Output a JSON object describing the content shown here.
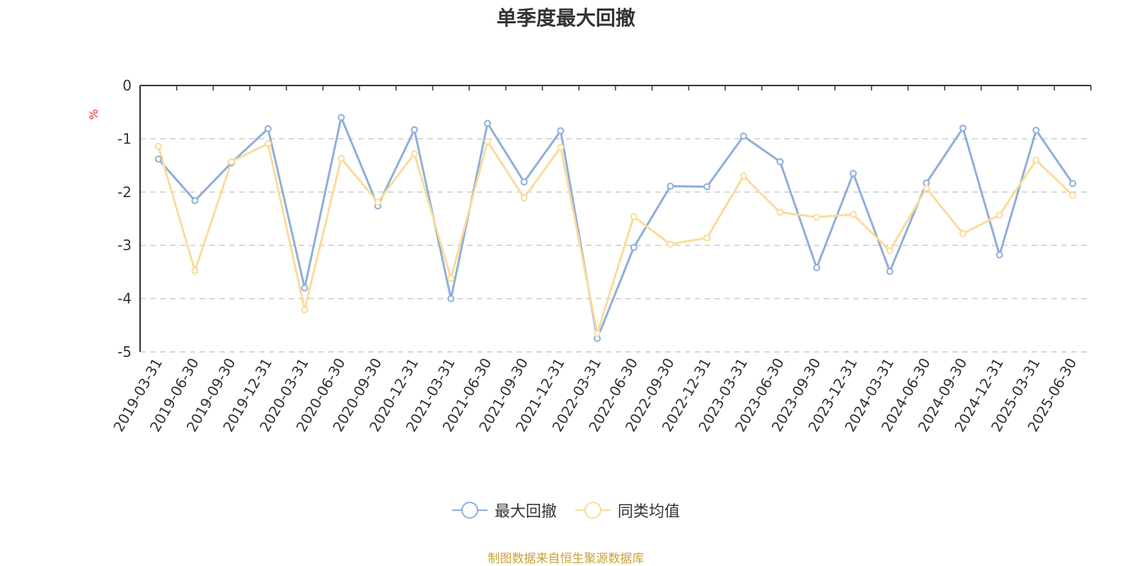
{
  "chart_data": {
    "type": "line",
    "title": "单季度最大回撤",
    "ylabel": "%",
    "ylim": [
      -5,
      0
    ],
    "yticks": [
      0,
      -1,
      -2,
      -3,
      -4,
      -5
    ],
    "grid": true,
    "legend_position": "bottom",
    "categories": [
      "2019-03-31",
      "2019-06-30",
      "2019-09-30",
      "2019-12-31",
      "2020-03-31",
      "2020-06-30",
      "2020-09-30",
      "2020-12-31",
      "2021-03-31",
      "2021-06-30",
      "2021-09-30",
      "2021-12-31",
      "2022-03-31",
      "2022-06-30",
      "2022-09-30",
      "2022-12-31",
      "2023-03-31",
      "2023-06-30",
      "2023-09-30",
      "2023-12-31",
      "2024-03-31",
      "2024-06-30",
      "2024-09-30",
      "2024-12-31",
      "2025-03-31",
      "2025-06-30"
    ],
    "series": [
      {
        "name": "最大回撤",
        "color": "#8eaedb",
        "values": [
          -1.38,
          -2.16,
          -1.45,
          -0.81,
          -3.8,
          -0.6,
          -2.26,
          -0.83,
          -4.0,
          -0.71,
          -1.81,
          -0.85,
          -4.75,
          -3.04,
          -1.89,
          -1.9,
          -0.95,
          -1.43,
          -3.42,
          -1.65,
          -3.49,
          -1.83,
          -0.8,
          -3.18,
          -0.84,
          -1.84
        ]
      },
      {
        "name": "同类均值",
        "color": "#fbdb9a",
        "values": [
          -1.14,
          -3.48,
          -1.43,
          -1.09,
          -4.21,
          -1.37,
          -2.19,
          -1.28,
          -3.62,
          -1.05,
          -2.11,
          -1.16,
          -4.65,
          -2.46,
          -2.98,
          -2.86,
          -1.7,
          -2.38,
          -2.47,
          -2.42,
          -3.1,
          -1.93,
          -2.78,
          -2.43,
          -1.4,
          -2.06
        ]
      }
    ]
  },
  "source_note": "制图数据来自恒生聚源数据库"
}
